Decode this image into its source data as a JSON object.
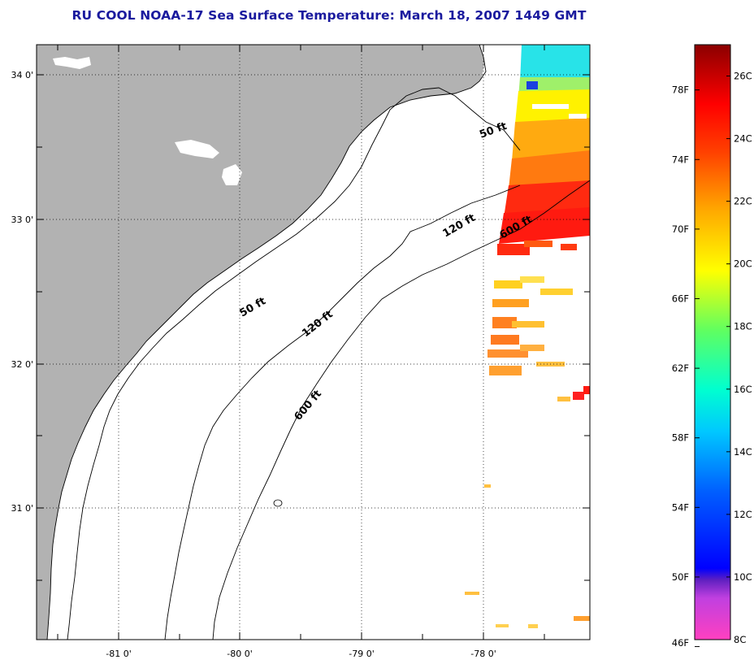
{
  "title": "RU COOL  NOAA-17  Sea Surface Temperature:  March 18, 2007 1449 GMT",
  "map": {
    "x_axis": {
      "range_deg": [
        -81.67,
        -77.22
      ],
      "ticks": [
        {
          "value": -81,
          "label": "-81 0'"
        },
        {
          "value": -80,
          "label": "-80 0'"
        },
        {
          "value": -79,
          "label": "-79 0'"
        },
        {
          "value": -78,
          "label": "-78 0'"
        }
      ]
    },
    "y_axis": {
      "range_deg": [
        30.2,
        34.2
      ],
      "ticks": [
        {
          "value": 34,
          "label": "34 0'"
        },
        {
          "value": 33,
          "label": "33 0'"
        },
        {
          "value": 32,
          "label": "32 0'"
        },
        {
          "value": 31,
          "label": "31 0'"
        }
      ]
    },
    "grid": "dotted",
    "land_color": "#b2b2b2",
    "contour_labels": [
      {
        "name": "contour-label-50ft-north",
        "text": "50 ft"
      },
      {
        "name": "contour-label-50ft-south",
        "text": "50 ft"
      },
      {
        "name": "contour-label-120ft-north",
        "text": "120 ft"
      },
      {
        "name": "contour-label-120ft-south",
        "text": "120 ft"
      },
      {
        "name": "contour-label-600ft-north",
        "text": "600 ft"
      },
      {
        "name": "contour-label-600ft-south",
        "text": "600 ft"
      }
    ]
  },
  "colorbar": {
    "range_c": [
      8,
      27
    ],
    "fahrenheit_labels": [
      "78F",
      "74F",
      "70F",
      "66F",
      "62F",
      "58F",
      "54F",
      "50F",
      "46F"
    ],
    "celsius_labels": [
      "26C",
      "24C",
      "22C",
      "20C",
      "18C",
      "16C",
      "14C",
      "12C",
      "10C",
      "8C"
    ]
  }
}
